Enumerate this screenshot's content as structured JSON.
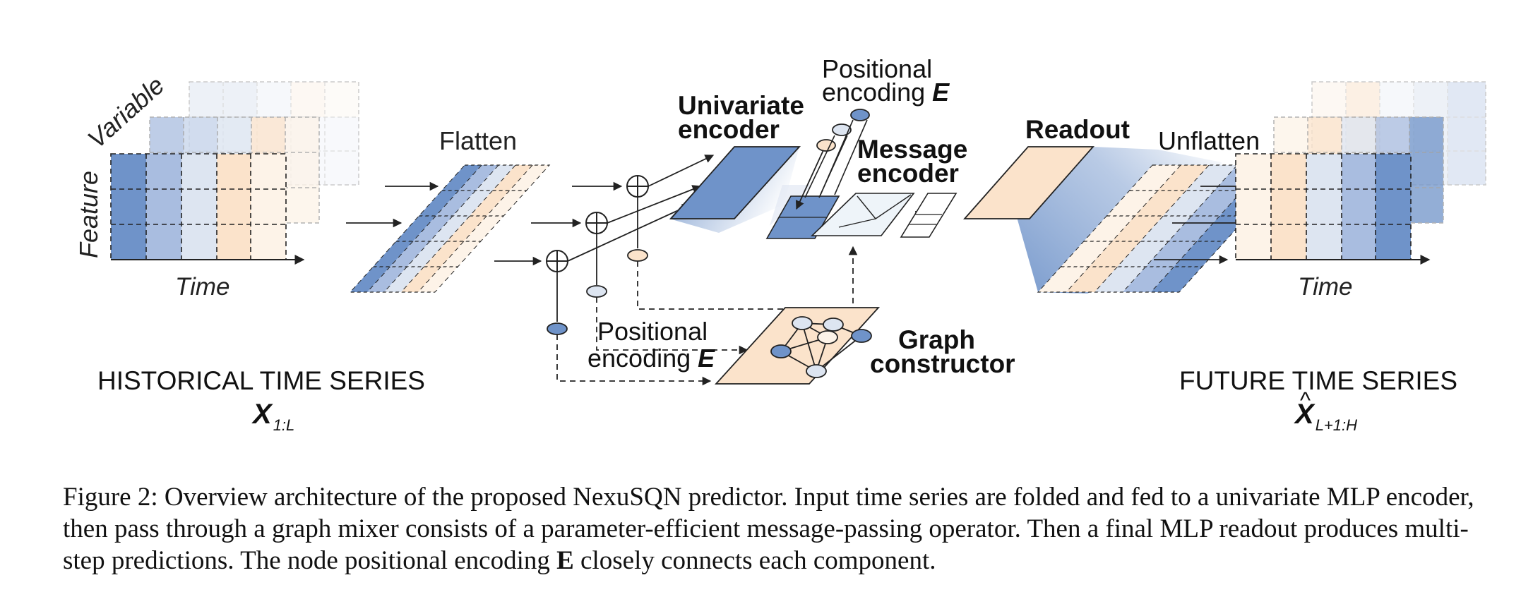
{
  "labels": {
    "variable": "Variable",
    "feature": "Feature",
    "time_left": "Time",
    "time_right": "Time",
    "flatten": "Flatten",
    "univariate_encoder_1": "Univariate",
    "univariate_encoder_2": "encoder",
    "positional_top_1": "Positional",
    "positional_top_2": "encoding",
    "positional_top_symbol": "E",
    "message_encoder_1": "Message",
    "message_encoder_2": "encoder",
    "readout": "Readout",
    "unflatten": "Unflatten",
    "positional_bottom_1": "Positional",
    "positional_bottom_2": "encoding",
    "positional_bottom_symbol": "E",
    "graph_constructor_1": "Graph",
    "graph_constructor_2": "constructor",
    "historical_title": "HISTORICAL TIME SERIES",
    "historical_symbol": "X",
    "historical_subscript": "1:L",
    "future_title": "FUTURE TIME SERIES",
    "future_symbol": "X",
    "future_hat": "^",
    "future_subscript": "L+1:H"
  },
  "caption": {
    "prefix": "Figure 2: Overview architecture of the proposed NexuSQN predictor. Input time series are folded and fed to a univariate MLP encoder, then pass through a graph mixer consists of a parameter-efficient message-passing operator. Then a final MLP readout produces multi-step predictions. The node positional encoding ",
    "symbol": "E",
    "suffix": " closely connects each component."
  },
  "colors": {
    "blue_dark": "#6f93c9",
    "blue_mid": "#a9bde0",
    "blue_light": "#dde5f1",
    "peach": "#fbe3cb",
    "peach_light": "#fdf3e8",
    "grid_dash": "#222222"
  }
}
